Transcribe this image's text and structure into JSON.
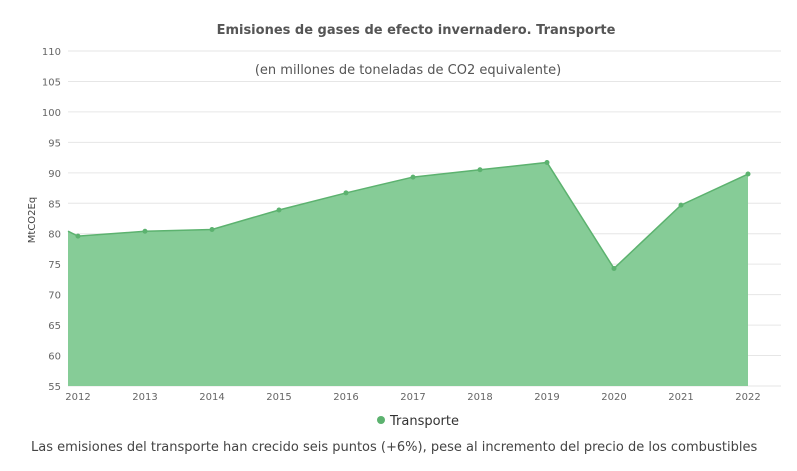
{
  "chart_data": {
    "type": "area",
    "title": "Emisiones de gases de efecto invernadero. Transporte",
    "subtitle": "(en millones de toneladas de CO2 equivalente)",
    "ylabel": "MtCO2Eq",
    "xlabel": "",
    "ylim": [
      55,
      110
    ],
    "yticks": [
      55,
      60,
      65,
      70,
      75,
      80,
      85,
      90,
      95,
      100,
      105,
      110
    ],
    "categories": [
      "2012",
      "2013",
      "2014",
      "2015",
      "2016",
      "2017",
      "2018",
      "2019",
      "2020",
      "2021",
      "2022"
    ],
    "series": [
      {
        "name": "Transporte",
        "values": [
          79.6,
          80.4,
          80.7,
          83.9,
          86.7,
          89.3,
          90.5,
          91.7,
          74.3,
          84.7,
          89.8
        ]
      }
    ],
    "grid": true,
    "legend": "bottom-center",
    "colors": {
      "fill": "#86cc97",
      "line": "#5cb26f",
      "grid": "#e6e6e6"
    }
  },
  "caption": "Las emisiones del transporte han crecido seis puntos (+6%), pese al incremento del precio de los combustibles"
}
